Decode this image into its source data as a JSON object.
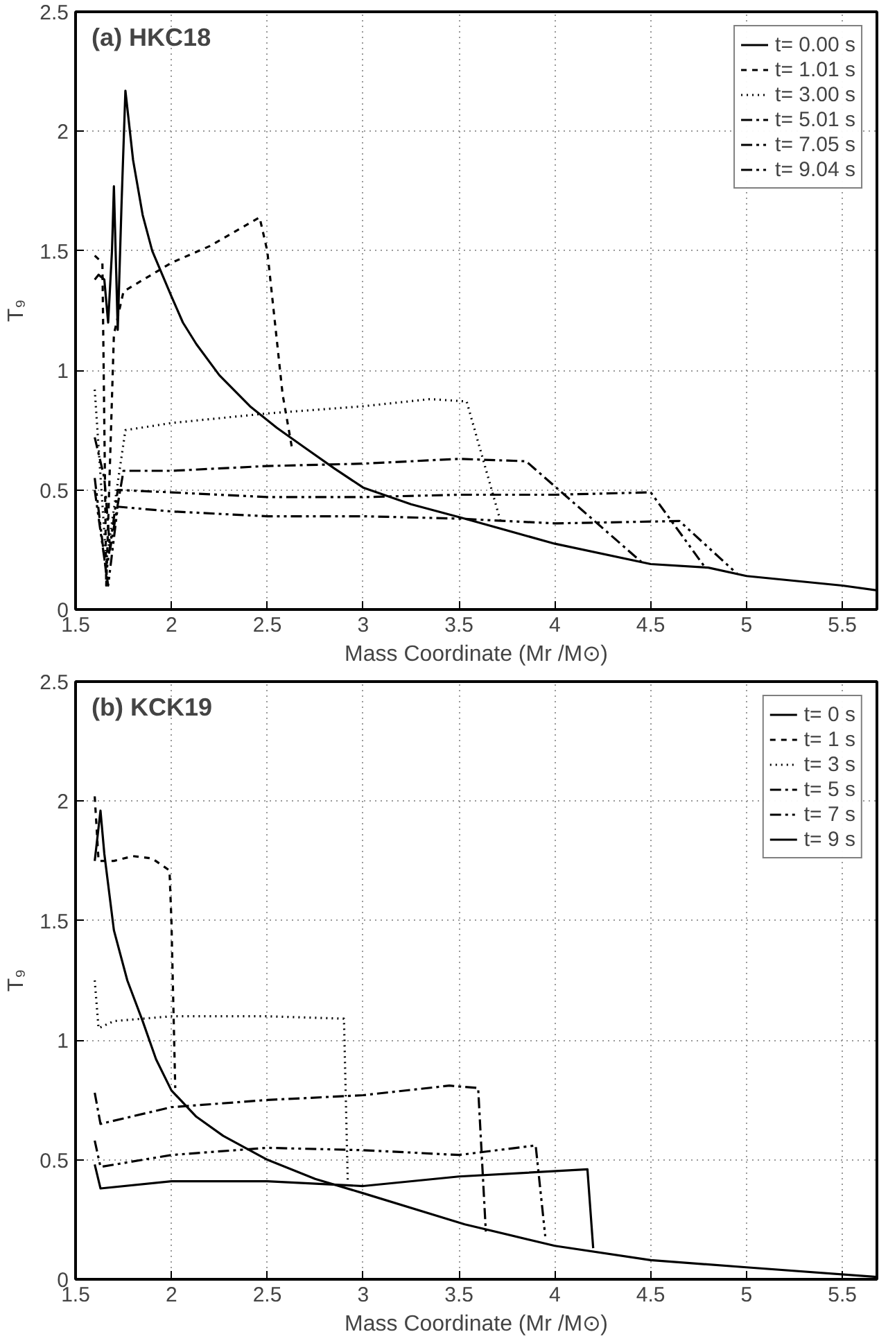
{
  "chart_data": [
    {
      "type": "line",
      "title": "(a) HKC18",
      "xlabel": "Mass Coordinate (Mr /M⊙)",
      "ylabel": "T₉",
      "xlim": [
        1.5,
        5.68
      ],
      "ylim": [
        0,
        2.5
      ],
      "xticks": [
        1.5,
        2,
        2.5,
        3,
        3.5,
        4,
        4.5,
        5,
        5.5
      ],
      "yticks": [
        0,
        0.5,
        1,
        1.5,
        2,
        2.5
      ],
      "grid": true,
      "legend": "top right",
      "series": [
        {
          "name": "t= 0.00 s",
          "color": "#000000",
          "line_style": "solid",
          "x": [
            1.6,
            1.62,
            1.65,
            1.67,
            1.69,
            1.7,
            1.72,
            1.74,
            1.76,
            1.8,
            1.85,
            1.9,
            2.0,
            2.06,
            2.13,
            2.25,
            2.41,
            2.55,
            2.69,
            2.85,
            3.0,
            3.25,
            3.53,
            4.0,
            4.5,
            4.8,
            5.0,
            5.5,
            5.68
          ],
          "values": [
            1.38,
            1.4,
            1.38,
            1.2,
            1.5,
            1.77,
            1.17,
            1.7,
            2.17,
            1.88,
            1.65,
            1.5,
            1.31,
            1.2,
            1.11,
            0.98,
            0.85,
            0.76,
            0.68,
            0.59,
            0.51,
            0.44,
            0.38,
            0.275,
            0.19,
            0.175,
            0.14,
            0.1,
            0.08
          ]
        },
        {
          "name": "t= 1.01 s",
          "color": "#000000",
          "line_style": "dashed",
          "x": [
            1.6,
            1.64,
            1.66,
            1.7,
            1.75,
            2.0,
            2.2,
            2.46,
            2.5,
            2.58,
            2.63
          ],
          "values": [
            1.48,
            1.45,
            0.1,
            1.15,
            1.33,
            1.45,
            1.52,
            1.64,
            1.5,
            0.9,
            0.67
          ]
        },
        {
          "name": "t= 3.00 s",
          "color": "#000000",
          "line_style": "dotted",
          "x": [
            1.6,
            1.66,
            1.76,
            2.0,
            2.5,
            3.0,
            3.35,
            3.54,
            3.72
          ],
          "values": [
            0.92,
            0.2,
            0.75,
            0.78,
            0.82,
            0.85,
            0.88,
            0.87,
            0.36
          ]
        },
        {
          "name": "t= 5.01 s",
          "color": "#000000",
          "line_style": "dashdot",
          "x": [
            1.6,
            1.65,
            1.68,
            1.75,
            2.0,
            2.5,
            3.0,
            3.5,
            3.85,
            4.45
          ],
          "values": [
            0.72,
            0.55,
            0.25,
            0.58,
            0.58,
            0.6,
            0.61,
            0.63,
            0.62,
            0.2
          ]
        },
        {
          "name": "t= 7.05 s",
          "color": "#000000",
          "line_style": "dashdotdot",
          "x": [
            1.6,
            1.66,
            1.72,
            2.0,
            2.5,
            3.0,
            3.5,
            4.0,
            4.5,
            4.78
          ],
          "values": [
            0.55,
            0.15,
            0.5,
            0.49,
            0.47,
            0.47,
            0.48,
            0.48,
            0.49,
            0.18
          ]
        },
        {
          "name": "t= 9.04 s",
          "color": "#000000",
          "line_style": "dashdotdot",
          "x": [
            1.6,
            1.67,
            1.72,
            2.0,
            2.5,
            3.0,
            3.5,
            4.0,
            4.65,
            4.95
          ],
          "values": [
            0.5,
            0.1,
            0.43,
            0.41,
            0.39,
            0.39,
            0.38,
            0.36,
            0.37,
            0.15
          ]
        }
      ]
    },
    {
      "type": "line",
      "title": "(b) KCK19",
      "xlabel": "Mass Coordinate (Mr /M⊙)",
      "ylabel": "T₉",
      "xlim": [
        1.5,
        5.68
      ],
      "ylim": [
        0,
        2.5
      ],
      "xticks": [
        1.5,
        2,
        2.5,
        3,
        3.5,
        4,
        4.5,
        5,
        5.5
      ],
      "yticks": [
        0,
        0.5,
        1,
        1.5,
        2,
        2.5
      ],
      "grid": true,
      "legend": "top right",
      "series": [
        {
          "name": "t= 0 s",
          "color": "#000000",
          "line_style": "solid",
          "x": [
            1.6,
            1.63,
            1.65,
            1.7,
            1.77,
            1.85,
            1.92,
            2.0,
            2.13,
            2.27,
            2.5,
            2.75,
            3.0,
            3.53,
            4.0,
            4.5,
            5.0,
            5.68
          ],
          "values": [
            1.75,
            1.96,
            1.78,
            1.46,
            1.25,
            1.08,
            0.92,
            0.79,
            0.68,
            0.6,
            0.5,
            0.42,
            0.36,
            0.23,
            0.14,
            0.08,
            0.05,
            0.01
          ]
        },
        {
          "name": "t= 1 s",
          "color": "#000000",
          "line_style": "dashed",
          "x": [
            1.6,
            1.62,
            1.7,
            1.8,
            1.9,
            1.99,
            2.0,
            2.02
          ],
          "values": [
            2.02,
            1.75,
            1.75,
            1.77,
            1.76,
            1.71,
            1.5,
            0.8
          ]
        },
        {
          "name": "t= 3 s",
          "color": "#000000",
          "line_style": "dotted",
          "x": [
            1.6,
            1.62,
            1.7,
            2.0,
            2.5,
            2.9,
            2.92
          ],
          "values": [
            1.25,
            1.05,
            1.08,
            1.1,
            1.1,
            1.09,
            0.4
          ]
        },
        {
          "name": "t= 5 s",
          "color": "#000000",
          "line_style": "dashdot",
          "x": [
            1.6,
            1.63,
            2.0,
            2.5,
            3.0,
            3.45,
            3.6,
            3.64
          ],
          "values": [
            0.78,
            0.65,
            0.72,
            0.75,
            0.77,
            0.81,
            0.8,
            0.2
          ]
        },
        {
          "name": "t= 7 s",
          "color": "#000000",
          "line_style": "dashdotdot",
          "x": [
            1.6,
            1.63,
            2.0,
            2.5,
            3.0,
            3.5,
            3.9,
            3.95
          ],
          "values": [
            0.58,
            0.47,
            0.52,
            0.55,
            0.54,
            0.52,
            0.56,
            0.18
          ]
        },
        {
          "name": "t= 9 s",
          "color": "#000000",
          "line_style": "solid",
          "x": [
            1.6,
            1.63,
            2.0,
            2.5,
            3.0,
            3.5,
            4.17,
            4.2
          ],
          "values": [
            0.48,
            0.38,
            0.41,
            0.41,
            0.39,
            0.43,
            0.46,
            0.13
          ]
        }
      ]
    }
  ]
}
